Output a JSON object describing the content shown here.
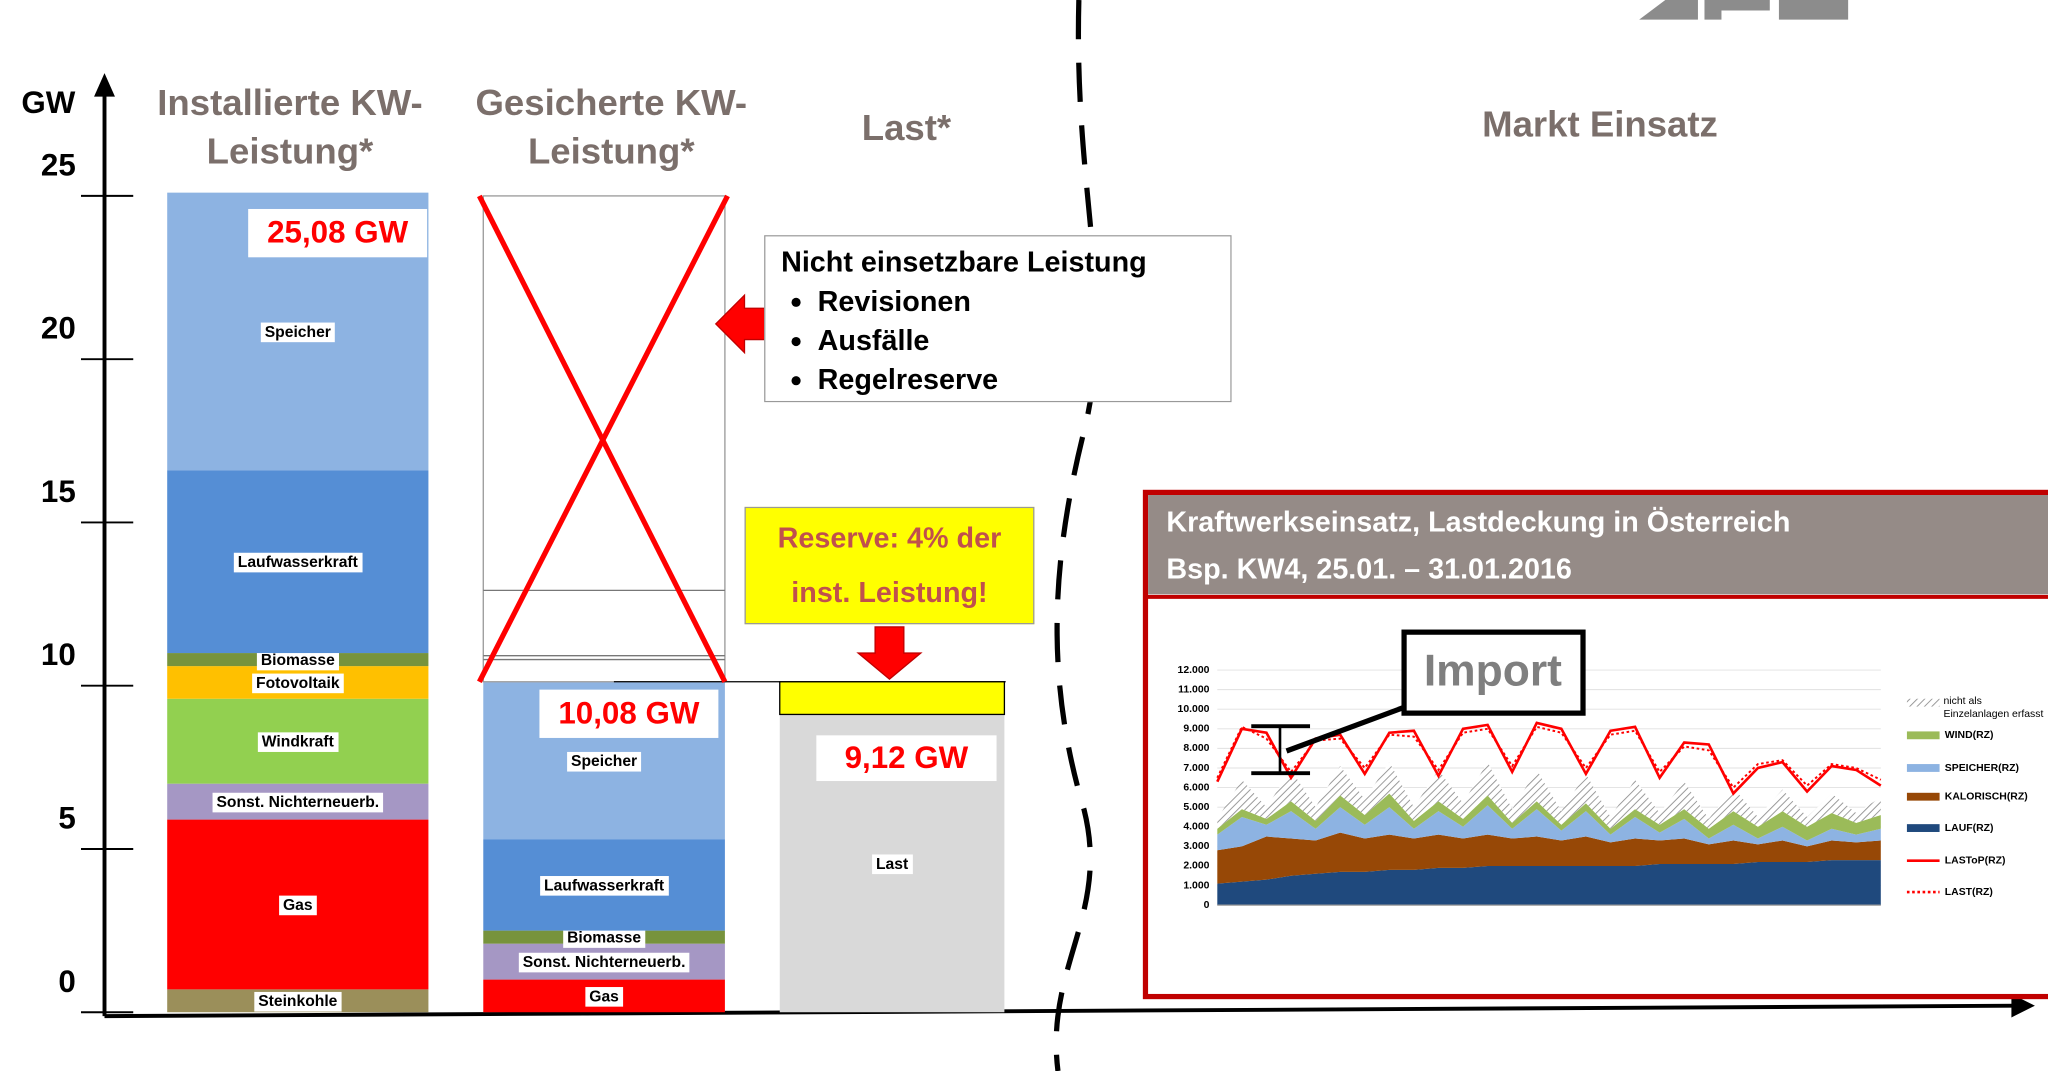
{
  "chart_data": [
    {
      "type": "bar",
      "stacked": true,
      "ylabel": "GW",
      "section_title": "Markt Einsatz",
      "categories": [
        "Installierte KW-Leistung*",
        "Gesicherte KW-Leistung*",
        "Last*"
      ],
      "series": [
        {
          "name": "Steinkohle",
          "color": "#9b8f5a",
          "values": [
            0.7,
            null,
            null
          ]
        },
        {
          "name": "Gas",
          "color": "#ff0000",
          "values": [
            5.2,
            1.0,
            null
          ]
        },
        {
          "name": "Sonst. Nichterneuerb.",
          "color": "#a597c4",
          "values": [
            1.1,
            1.1,
            null
          ]
        },
        {
          "name": "Windkraft",
          "color": "#92d050",
          "values": [
            2.6,
            null,
            null
          ]
        },
        {
          "name": "Fotovoltaik",
          "color": "#ffc000",
          "values": [
            1.0,
            null,
            null
          ]
        },
        {
          "name": "Biomasse",
          "color": "#77933c",
          "values": [
            0.4,
            0.4,
            null
          ]
        },
        {
          "name": "Laufwasserkraft",
          "color": "#558ed5",
          "values": [
            5.6,
            2.8,
            null
          ]
        },
        {
          "name": "Speicher",
          "color": "#8db3e2",
          "values": [
            8.5,
            4.8,
            null
          ]
        },
        {
          "name": "Last",
          "color": "#d9d9d9",
          "values": [
            null,
            null,
            9.12
          ]
        }
      ],
      "totals": [
        25.08,
        10.08,
        9.12
      ],
      "total_labels": [
        "25,08 GW",
        "10,08 GW",
        "9,12 GW"
      ],
      "reserve": {
        "label": "Reserve: 4% der inst. Leistung!",
        "value": 1.0,
        "color": "#ffff00"
      },
      "callout": {
        "title": "Nicht einsetzbare Leistung",
        "items": [
          "Revisionen",
          "Ausfälle",
          "Regelreserve"
        ]
      },
      "ylim": [
        0,
        25
      ],
      "yticks": [
        0,
        5,
        10,
        15,
        20,
        25
      ]
    },
    {
      "type": "area",
      "title": "Kraftwerkseinsatz, Lastdeckung in Österreich",
      "subtitle": "Bsp. KW4, 25.01. – 31.01.2016",
      "annotation": "Import",
      "categories": [
        null,
        null,
        null,
        null,
        null,
        null,
        null,
        null,
        null,
        null,
        null,
        null,
        null,
        null,
        null,
        null,
        null,
        null,
        null,
        null,
        null,
        null,
        null,
        null,
        null,
        null,
        null,
        null
      ],
      "ylim": [
        0,
        12000
      ],
      "yticks": [
        0,
        {
          "value": 1000,
          "label": "1.000"
        },
        {
          "value": 2000,
          "label": "2.000"
        },
        {
          "value": 3000,
          "label": "3.000"
        },
        {
          "value": 4000,
          "label": "4.000"
        },
        {
          "value": 5000,
          "label": "5.000"
        },
        {
          "value": 6000,
          "label": "6.000"
        },
        {
          "value": 7000,
          "label": "7.000"
        },
        {
          "value": 8000,
          "label": "8.000"
        },
        {
          "value": 9000,
          "label": "9.000"
        },
        {
          "value": 10000,
          "label": "10.000"
        },
        {
          "value": 11000,
          "label": "11.000"
        },
        {
          "value": 12000,
          "label": "12.000"
        }
      ],
      "series": [
        {
          "name": "nicht als Einzelanlagen erfasst",
          "kind": "area",
          "color": "hatch",
          "values": [
            500,
            1500,
            600,
            1600,
            700,
            1500,
            800,
            1600,
            700,
            1600,
            800,
            1700,
            700,
            1600,
            700,
            1500,
            600,
            1500,
            600,
            1400,
            500,
            1200,
            500,
            1100,
            500,
            1000,
            500,
            900
          ]
        },
        {
          "name": "WIND(RZ)",
          "kind": "area",
          "color": "#9bbb59",
          "values": [
            300,
            400,
            300,
            500,
            400,
            600,
            500,
            700,
            400,
            500,
            400,
            500,
            300,
            400,
            300,
            400,
            300,
            400,
            400,
            500,
            500,
            700,
            600,
            800,
            700,
            800,
            600,
            700
          ]
        },
        {
          "name": "SPEICHER(RZ)",
          "kind": "area",
          "color": "#8db3e2",
          "values": [
            800,
            1500,
            600,
            1400,
            600,
            1300,
            700,
            1400,
            500,
            1200,
            600,
            1500,
            500,
            1400,
            500,
            1300,
            400,
            1100,
            400,
            1000,
            300,
            800,
            300,
            700,
            300,
            600,
            400,
            600
          ]
        },
        {
          "name": "KALORISCH(RZ)",
          "kind": "area",
          "color": "#974806",
          "values": [
            1700,
            1800,
            2200,
            1900,
            1700,
            2000,
            1700,
            1800,
            1600,
            1700,
            1500,
            1600,
            1400,
            1500,
            1300,
            1500,
            1200,
            1400,
            1200,
            1300,
            1000,
            1200,
            900,
            1100,
            800,
            1000,
            900,
            1000
          ]
        },
        {
          "name": "LAUF(RZ)",
          "kind": "area",
          "color": "#1f497d",
          "values": [
            1100,
            1200,
            1300,
            1500,
            1600,
            1700,
            1700,
            1800,
            1800,
            1900,
            1900,
            2000,
            2000,
            2000,
            2000,
            2000,
            2000,
            2000,
            2100,
            2100,
            2100,
            2100,
            2200,
            2200,
            2200,
            2300,
            2300,
            2300
          ]
        },
        {
          "name": "LASToP(RZ)",
          "kind": "line",
          "color": "#ff0000",
          "values": [
            6300,
            9000,
            8800,
            6500,
            8500,
            8700,
            6700,
            8800,
            8900,
            6600,
            9000,
            9200,
            6800,
            9300,
            9000,
            6700,
            8900,
            9100,
            6500,
            8300,
            8200,
            5700,
            7000,
            7300,
            5800,
            7100,
            6900,
            6100
          ]
        },
        {
          "name": "LAST(RZ)",
          "kind": "line",
          "style": "dotted",
          "color": "#ff0000",
          "values": [
            6500,
            9100,
            8500,
            6800,
            8400,
            8500,
            7000,
            8700,
            8600,
            6900,
            8800,
            9000,
            7100,
            9100,
            8800,
            7000,
            8700,
            8900,
            6800,
            8100,
            7900,
            6000,
            7200,
            7400,
            6100,
            7200,
            7000,
            6400
          ]
        }
      ]
    }
  ]
}
